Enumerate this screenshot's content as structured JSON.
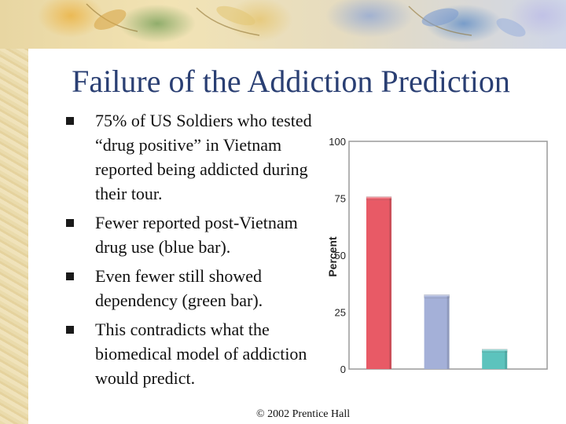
{
  "slide": {
    "title": "Failure of the Addiction Prediction",
    "bullets": [
      "75% of US Soldiers who tested “drug positive” in Vietnam reported being addicted during their tour.",
      "Fewer reported post-Vietnam drug use (blue bar).",
      "Even fewer still showed dependency (green bar).",
      "This contradicts what the biomedical model of addiction would predict."
    ],
    "footer": "© 2002 Prentice Hall"
  },
  "chart_data": {
    "type": "bar",
    "ylabel": "Percent",
    "ylim": [
      0,
      100
    ],
    "yticks": [
      0,
      25,
      50,
      75,
      100
    ],
    "grid": false,
    "values": [
      75,
      32,
      8
    ],
    "colors": [
      "#e85a66",
      "#a4b0d8",
      "#5cc3bd"
    ]
  }
}
